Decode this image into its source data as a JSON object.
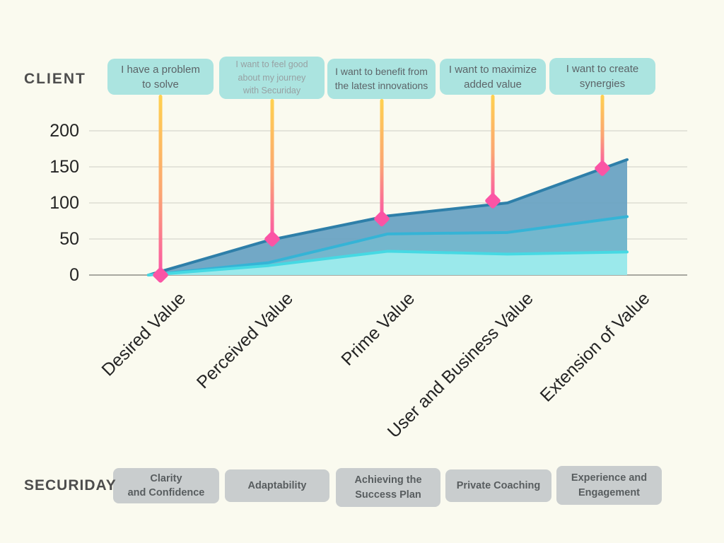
{
  "page": {
    "background_color": "#fafaef"
  },
  "client_row": {
    "label": "CLIENT",
    "callouts": [
      {
        "text": "I have a problem\nto solve"
      },
      {
        "text": "I want to feel good\nabout my journey\nwith Securiday"
      },
      {
        "text": "I want to benefit from\nthe latest innovations"
      },
      {
        "text": "I want to maximize\nadded value"
      },
      {
        "text": "I want to create\nsynergies"
      }
    ],
    "callout_bg_color": "#abe4e0"
  },
  "securiday_row": {
    "label": "SECURIDAY",
    "stages": [
      {
        "text": "Clarity\nand Confidence"
      },
      {
        "text": "Adaptability"
      },
      {
        "text": "Achieving the\nSuccess Plan"
      },
      {
        "text": "Private Coaching"
      },
      {
        "text": "Experience and\nEngagement"
      }
    ],
    "stage_bg_color": "#c9cdce"
  },
  "chart_data": {
    "type": "area",
    "title": "",
    "xlabel": "",
    "ylabel": "",
    "categories": [
      "Desired Value",
      "Perceived Value",
      "Prime Value",
      "User and Business Value",
      "Extension of Value"
    ],
    "y_ticks": [
      0,
      50,
      100,
      150,
      200
    ],
    "ylim": [
      0,
      200
    ],
    "grid": true,
    "legend": false,
    "series": [
      {
        "name": "outer-value-layer",
        "fill": "#6aa3c3",
        "stroke": "#2e7fa9",
        "values": [
          0,
          48,
          82,
          100,
          160
        ]
      },
      {
        "name": "middle-value-layer",
        "fill": "#74b7cd",
        "stroke": "#35b4d6",
        "values": [
          0,
          17,
          57,
          59,
          81
        ]
      },
      {
        "name": "inner-value-layer",
        "fill": "#9debec",
        "stroke": "#46d9e3",
        "values": [
          0,
          13,
          33,
          29,
          32
        ]
      }
    ],
    "markers": {
      "shape": "diamond",
      "color": "#fb54a5",
      "values": [
        0,
        50,
        78,
        103,
        148
      ]
    },
    "connector_gradient": [
      "#ffd14f",
      "#fba573",
      "#fb55a7"
    ],
    "gridline_color": "#dcdcd4",
    "axis_line_color": "#a8a8a0"
  }
}
